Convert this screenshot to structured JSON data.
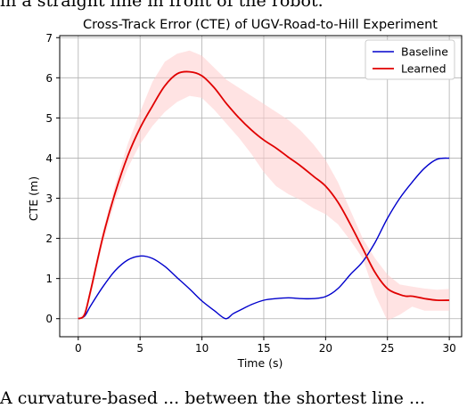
{
  "page_text": {
    "top": "in a straight line in front of the robot.",
    "bottom": "A curvature-based ... between the shortest line ..."
  },
  "chart_data": {
    "type": "line",
    "title": "Cross-Track Error (CTE) of UGV-Road-to-Hill Experiment",
    "xlabel": "Time (s)",
    "ylabel": "CTE (m)",
    "xlim": [
      -1.5,
      31
    ],
    "ylim": [
      -0.45,
      7.05
    ],
    "xticks": [
      0,
      5,
      10,
      15,
      20,
      25,
      30
    ],
    "yticks": [
      0,
      1,
      2,
      3,
      4,
      5,
      6,
      7
    ],
    "grid": true,
    "legend_position": "top-right",
    "series": [
      {
        "name": "Baseline",
        "color": "#0000cc",
        "x": [
          0,
          0.5,
          1,
          2,
          3,
          4,
          5,
          6,
          7,
          8,
          9,
          10,
          11,
          11.9,
          12.5,
          13,
          14,
          15,
          16,
          17,
          18,
          19,
          20,
          21,
          22,
          23,
          24,
          25,
          26,
          27,
          28,
          29,
          30
        ],
        "y": [
          0,
          0.06,
          0.32,
          0.8,
          1.2,
          1.46,
          1.56,
          1.5,
          1.3,
          1.02,
          0.74,
          0.44,
          0.2,
          0.0,
          0.12,
          0.2,
          0.35,
          0.46,
          0.5,
          0.52,
          0.5,
          0.5,
          0.55,
          0.75,
          1.1,
          1.42,
          1.9,
          2.5,
          3.0,
          3.4,
          3.75,
          3.97,
          4.0
        ]
      },
      {
        "name": "Learned",
        "color": "#e00000",
        "x": [
          0,
          0.5,
          1,
          2,
          3,
          4,
          5,
          6,
          7,
          8,
          9,
          10,
          11,
          12,
          13,
          14,
          15,
          16,
          17,
          18,
          19,
          20,
          21,
          22,
          23,
          24,
          25,
          26,
          26.5,
          27,
          28,
          29,
          30
        ],
        "y": [
          0,
          0.1,
          0.7,
          2.05,
          3.15,
          4.05,
          4.75,
          5.3,
          5.8,
          6.1,
          6.15,
          6.05,
          5.75,
          5.35,
          5.0,
          4.7,
          4.45,
          4.25,
          4.02,
          3.8,
          3.55,
          3.3,
          2.9,
          2.35,
          1.75,
          1.15,
          0.75,
          0.6,
          0.56,
          0.56,
          0.5,
          0.46,
          0.46
        ]
      }
    ],
    "learned_band": {
      "color": "#ffcccc",
      "x": [
        0,
        0.5,
        1,
        2,
        3,
        4,
        5,
        6,
        7,
        8,
        9,
        10,
        11,
        12,
        13,
        14,
        15,
        16,
        17,
        18,
        19,
        20,
        21,
        22,
        23,
        24,
        25,
        26,
        27,
        28,
        29,
        30
      ],
      "upper": [
        0,
        0.15,
        0.8,
        2.2,
        3.35,
        4.35,
        5.15,
        5.9,
        6.4,
        6.6,
        6.68,
        6.55,
        6.25,
        5.95,
        5.75,
        5.55,
        5.35,
        5.15,
        4.95,
        4.68,
        4.35,
        3.95,
        3.4,
        2.7,
        2.0,
        1.5,
        1.1,
        0.85,
        0.8,
        0.75,
        0.72,
        0.74
      ],
      "lower": [
        0,
        0.05,
        0.55,
        1.9,
        2.95,
        3.75,
        4.35,
        4.8,
        5.15,
        5.4,
        5.55,
        5.5,
        5.2,
        4.85,
        4.5,
        4.1,
        3.65,
        3.3,
        3.1,
        2.95,
        2.75,
        2.6,
        2.35,
        1.95,
        1.5,
        0.6,
        -0.05,
        0.1,
        0.3,
        0.2,
        0.2,
        0.2
      ]
    }
  }
}
